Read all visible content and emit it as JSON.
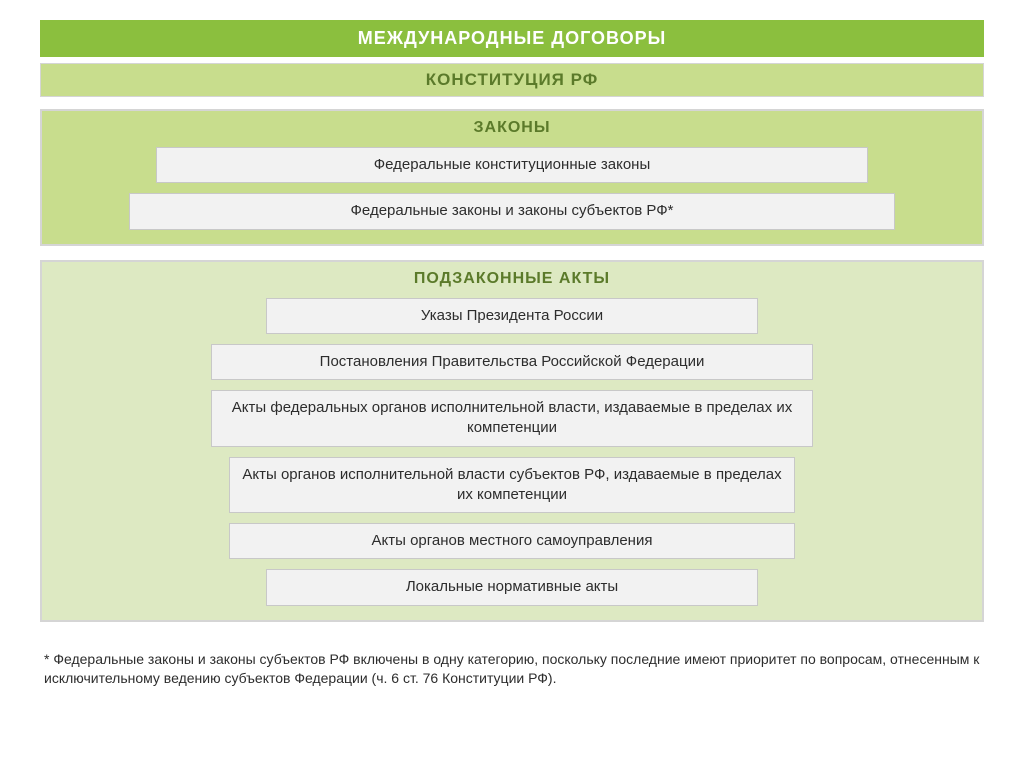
{
  "colors": {
    "green_strong": "#8bbf3e",
    "green_mid": "#c8dd8d",
    "green_light": "#dde9c2",
    "title_text": "#5b7a2a",
    "item_bg": "#f2f2f2",
    "item_border": "#c8c8c8",
    "group_border": "#d5d5d5",
    "body_text": "#2d2d2d",
    "white": "#ffffff"
  },
  "typography": {
    "header_fontsize_pt": 14,
    "group_title_fontsize_pt": 12,
    "item_fontsize_pt": 11,
    "footnote_fontsize_pt": 10,
    "font_family": "Arial"
  },
  "header": {
    "title": "МЕЖДУНАРОДНЫЕ  ДОГОВОРЫ"
  },
  "constitution": {
    "title": "КОНСТИТУЦИЯ РФ"
  },
  "laws_group": {
    "title": "ЗАКОНЫ",
    "items": [
      {
        "text": "Федеральные конституционные законы",
        "width_pct": 78
      },
      {
        "text": "Федеральные законы и законы субъектов РФ*",
        "width_pct": 84
      }
    ]
  },
  "sub_group": {
    "title": "ПОДЗАКОННЫЕ АКТЫ",
    "items": [
      {
        "text": "Указы Президента России",
        "width_pct": 54
      },
      {
        "text": "Постановления Правительства Российской Федерации",
        "width_pct": 66
      },
      {
        "text": "Акты федеральных органов исполнительной власти, издаваемые в пределах их компетенции",
        "width_pct": 66
      },
      {
        "text": "Акты органов исполнительной власти субъектов РФ, издаваемые в пределах их компетенции",
        "width_pct": 62
      },
      {
        "text": "Акты органов местного самоуправления",
        "width_pct": 62
      },
      {
        "text": "Локальные нормативные акты",
        "width_pct": 54
      }
    ]
  },
  "footnote": {
    "text": "* Федеральные законы и законы субъектов РФ включены в одну категорию, поскольку последние имеют приоритет по вопросам, отнесенным к исключительному ведению субъектов Федерации (ч. 6 ст. 76 Конституции РФ)."
  }
}
